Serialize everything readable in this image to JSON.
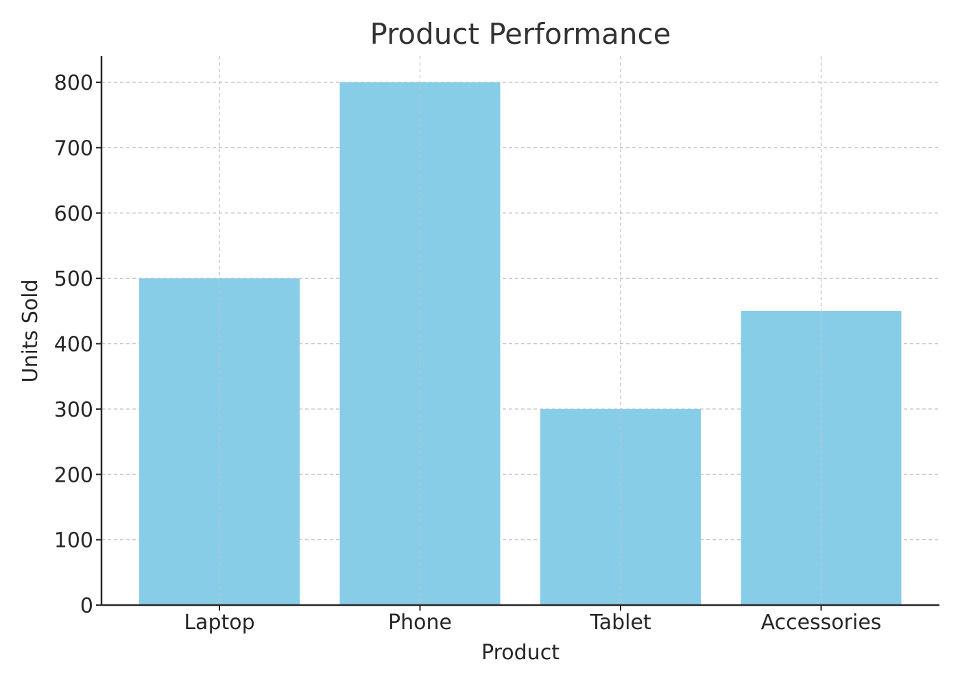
{
  "chart_data": {
    "type": "bar",
    "title": "Product Performance",
    "xlabel": "Product",
    "ylabel": "Units Sold",
    "categories": [
      "Laptop",
      "Phone",
      "Tablet",
      "Accessories"
    ],
    "values": [
      500,
      800,
      300,
      450
    ],
    "ylim": [
      0,
      840
    ],
    "yticks": [
      0,
      100,
      200,
      300,
      400,
      500,
      600,
      700,
      800
    ],
    "grid": true,
    "bar_color": "#87CDE8"
  }
}
